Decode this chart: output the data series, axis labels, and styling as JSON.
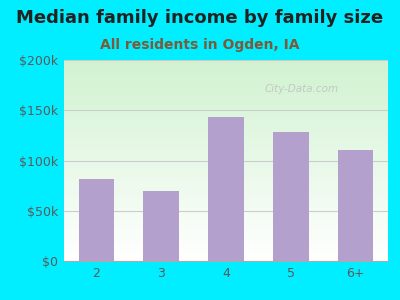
{
  "title": "Median family income by family size",
  "subtitle": "All residents in Ogden, IA",
  "categories": [
    "2",
    "3",
    "4",
    "5",
    "6+"
  ],
  "values": [
    82000,
    70000,
    143000,
    128000,
    110000
  ],
  "bar_color": "#b3a0cc",
  "background_outer": "#00eeff",
  "ylim": [
    0,
    200000
  ],
  "yticks": [
    0,
    50000,
    100000,
    150000,
    200000
  ],
  "ytick_labels": [
    "$0",
    "$50k",
    "$100k",
    "$150k",
    "$200k"
  ],
  "title_fontsize": 13,
  "subtitle_fontsize": 10,
  "tick_color": "#5a5a5a",
  "subtitle_color": "#7a5a3a",
  "watermark": "City-Data.com",
  "grid_color": "#cccccc"
}
